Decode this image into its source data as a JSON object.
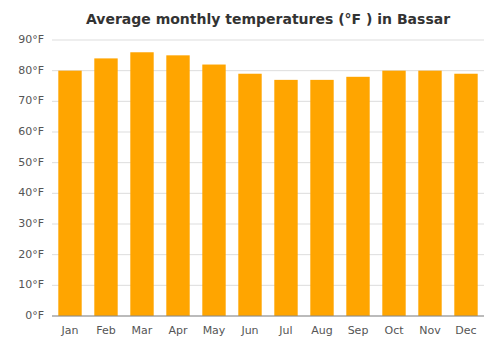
{
  "chart_data": {
    "type": "bar",
    "title": "Average monthly temperatures (°F ) in Bassar",
    "categories": [
      "Jan",
      "Feb",
      "Mar",
      "Apr",
      "May",
      "Jun",
      "Jul",
      "Aug",
      "Sep",
      "Oct",
      "Nov",
      "Dec"
    ],
    "values": [
      80,
      84,
      86,
      85,
      82,
      79,
      77,
      77,
      78,
      80,
      80,
      79
    ],
    "color": "#FFA500",
    "ylim": [
      0,
      90
    ],
    "yticks": [
      {
        "value": 0,
        "label": "0°F"
      },
      {
        "value": 10,
        "label": "10°F"
      },
      {
        "value": 20,
        "label": "20°F"
      },
      {
        "value": 30,
        "label": "30°F"
      },
      {
        "value": 40,
        "label": "40°F"
      },
      {
        "value": 50,
        "label": "50°F"
      },
      {
        "value": 60,
        "label": "60°F"
      },
      {
        "value": 70,
        "label": "70°F"
      },
      {
        "value": 80,
        "label": "80°F"
      },
      {
        "value": 90,
        "label": "90°F"
      }
    ],
    "grid": true
  }
}
